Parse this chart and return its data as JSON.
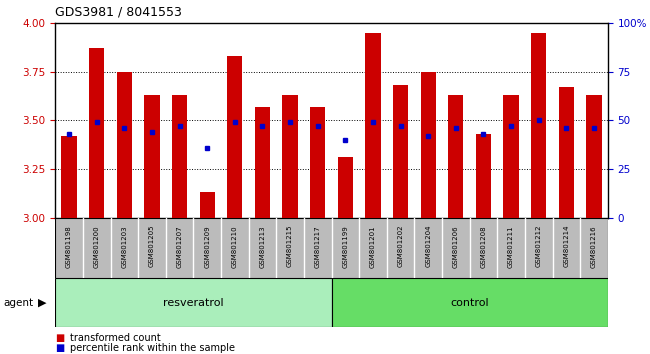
{
  "title": "GDS3981 / 8041553",
  "samples": [
    "GSM801198",
    "GSM801200",
    "GSM801203",
    "GSM801205",
    "GSM801207",
    "GSM801209",
    "GSM801210",
    "GSM801213",
    "GSM801215",
    "GSM801217",
    "GSM801199",
    "GSM801201",
    "GSM801202",
    "GSM801204",
    "GSM801206",
    "GSM801208",
    "GSM801211",
    "GSM801212",
    "GSM801214",
    "GSM801216"
  ],
  "bar_values": [
    3.42,
    3.87,
    3.75,
    3.63,
    3.63,
    3.13,
    3.83,
    3.57,
    3.63,
    3.57,
    3.31,
    3.95,
    3.68,
    3.75,
    3.63,
    3.43,
    3.63,
    3.95,
    3.67,
    3.63
  ],
  "percentile_values": [
    3.43,
    3.49,
    3.46,
    3.44,
    3.47,
    3.36,
    3.49,
    3.47,
    3.49,
    3.47,
    3.4,
    3.49,
    3.47,
    3.42,
    3.46,
    3.43,
    3.47,
    3.5,
    3.46,
    3.46
  ],
  "resveratrol_count": 10,
  "control_count": 10,
  "bar_color": "#cc0000",
  "dot_color": "#0000cc",
  "ylim_left": [
    3.0,
    4.0
  ],
  "ylim_right": [
    0,
    100
  ],
  "yticks_left": [
    3.0,
    3.25,
    3.5,
    3.75,
    4.0
  ],
  "yticks_right": [
    0,
    25,
    50,
    75,
    100
  ],
  "bg_color": "#ffffff",
  "sample_bg": "#bbbbbb",
  "resveratrol_color": "#aaeebb",
  "control_color": "#66dd66",
  "agent_label": "agent",
  "resveratrol_label": "resveratrol",
  "control_label": "control",
  "legend1": "transformed count",
  "legend2": "percentile rank within the sample"
}
